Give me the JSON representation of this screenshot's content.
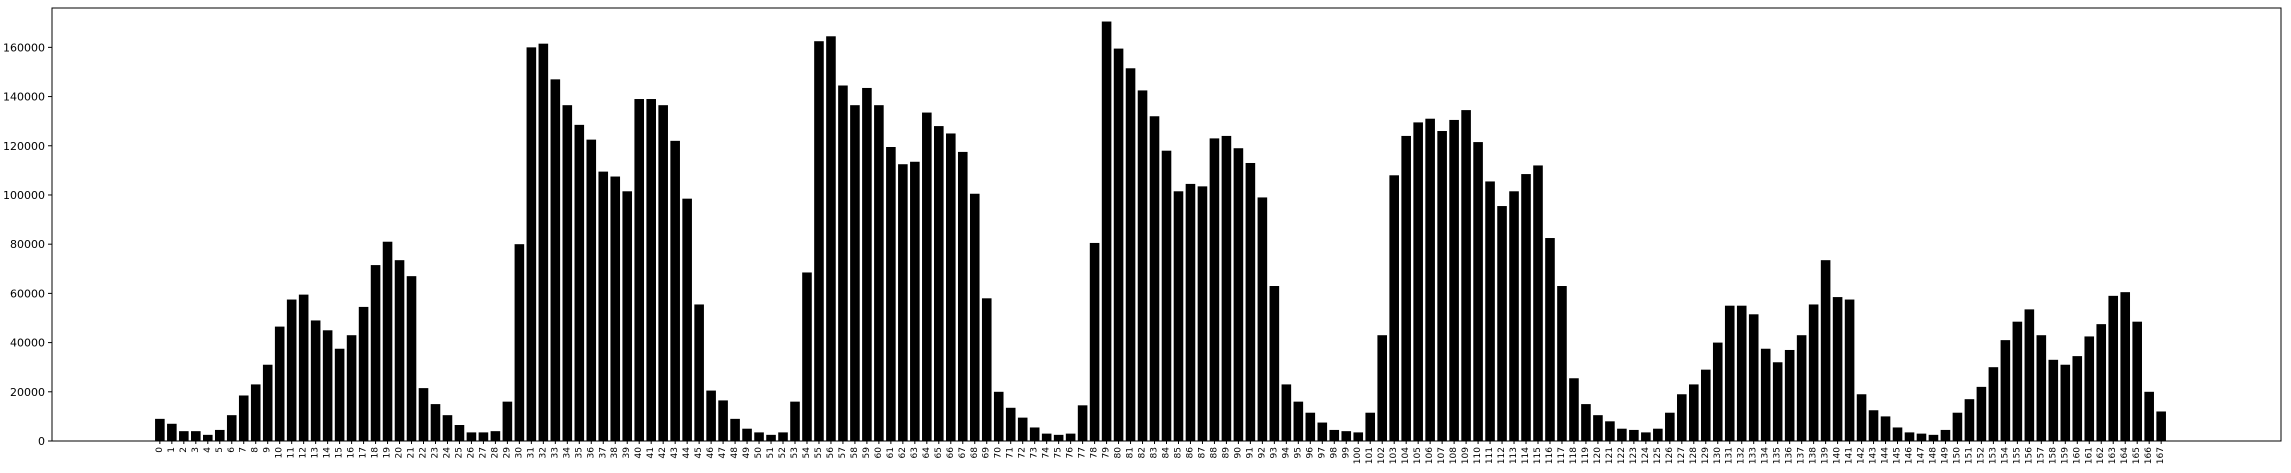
{
  "chart_data": {
    "type": "bar",
    "title": "",
    "xlabel": "",
    "ylabel": "",
    "ylim": [
      0,
      176000
    ],
    "xlim": [
      -9,
      177
    ],
    "yticks": [
      0,
      20000,
      40000,
      60000,
      80000,
      100000,
      120000,
      140000,
      160000
    ],
    "bar_color": "#000000",
    "grid": false,
    "categories": [
      "0",
      "1",
      "2",
      "3",
      "4",
      "5",
      "6",
      "7",
      "8",
      "9",
      "10",
      "11",
      "12",
      "13",
      "14",
      "15",
      "16",
      "17",
      "18",
      "19",
      "20",
      "21",
      "22",
      "23",
      "24",
      "25",
      "26",
      "27",
      "28",
      "29",
      "30",
      "31",
      "32",
      "33",
      "34",
      "35",
      "36",
      "37",
      "38",
      "39",
      "40",
      "41",
      "42",
      "43",
      "44",
      "45",
      "46",
      "47",
      "48",
      "49",
      "50",
      "51",
      "52",
      "53",
      "54",
      "55",
      "56",
      "57",
      "58",
      "59",
      "60",
      "61",
      "62",
      "63",
      "64",
      "65",
      "66",
      "67",
      "68",
      "69",
      "70",
      "71",
      "72",
      "73",
      "74",
      "75",
      "76",
      "77",
      "78",
      "79",
      "80",
      "81",
      "82",
      "83",
      "84",
      "85",
      "86",
      "87",
      "88",
      "89",
      "90",
      "91",
      "92",
      "93",
      "94",
      "95",
      "96",
      "97",
      "98",
      "99",
      "100",
      "101",
      "102",
      "103",
      "104",
      "105",
      "106",
      "107",
      "108",
      "109",
      "110",
      "111",
      "112",
      "113",
      "114",
      "115",
      "116",
      "117",
      "118",
      "119",
      "120",
      "121",
      "122",
      "123",
      "124",
      "125",
      "126",
      "127",
      "128",
      "129",
      "130",
      "131",
      "132",
      "133",
      "134",
      "135",
      "136",
      "137",
      "138",
      "139",
      "140",
      "141",
      "142",
      "143",
      "144",
      "145",
      "146",
      "147",
      "148",
      "149",
      "150",
      "151",
      "152",
      "153",
      "154",
      "155",
      "156",
      "157",
      "158",
      "159",
      "160",
      "161",
      "162",
      "163",
      "164",
      "165",
      "166",
      "167"
    ],
    "values": [
      9000,
      7000,
      4000,
      4000,
      2500,
      4500,
      10500,
      18500,
      23000,
      31000,
      46500,
      57500,
      59500,
      49000,
      45000,
      37500,
      43000,
      54500,
      71500,
      81000,
      73500,
      67000,
      21500,
      15000,
      10500,
      6500,
      3500,
      3500,
      4000,
      16000,
      80000,
      160000,
      161500,
      147000,
      136500,
      128500,
      122500,
      109500,
      107500,
      101500,
      139000,
      139000,
      136500,
      122000,
      98500,
      55500,
      20500,
      16500,
      9000,
      5000,
      3500,
      2500,
      3500,
      16000,
      68500,
      162500,
      164500,
      144500,
      136500,
      143500,
      136500,
      119500,
      112500,
      113500,
      133500,
      128000,
      125000,
      117500,
      100500,
      58000,
      20000,
      13500,
      9500,
      5500,
      3000,
      2500,
      3000,
      14500,
      80500,
      170500,
      159500,
      151500,
      142500,
      132000,
      118000,
      101500,
      104500,
      103500,
      123000,
      124000,
      119000,
      113000,
      99000,
      63000,
      23000,
      16000,
      11500,
      7500,
      4500,
      4000,
      3500,
      11500,
      43000,
      108000,
      124000,
      129500,
      131000,
      126000,
      130500,
      134500,
      121500,
      105500,
      95500,
      101500,
      108500,
      112000,
      82500,
      63000,
      25500,
      15000,
      10500,
      8000,
      5000,
      4500,
      3500,
      5000,
      11500,
      19000,
      23000,
      29000,
      40000,
      55000,
      55000,
      51500,
      37500,
      32000,
      37000,
      43000,
      55500,
      73500,
      58500,
      57500,
      19000,
      12500,
      10000,
      5500,
      3500,
      3000,
      2500,
      4500,
      11500,
      17000,
      22000,
      30000,
      41000,
      48500,
      53500,
      43000,
      33000,
      31000,
      34500,
      42500,
      47500,
      59000,
      60500,
      48500,
      20000,
      12000
    ]
  }
}
